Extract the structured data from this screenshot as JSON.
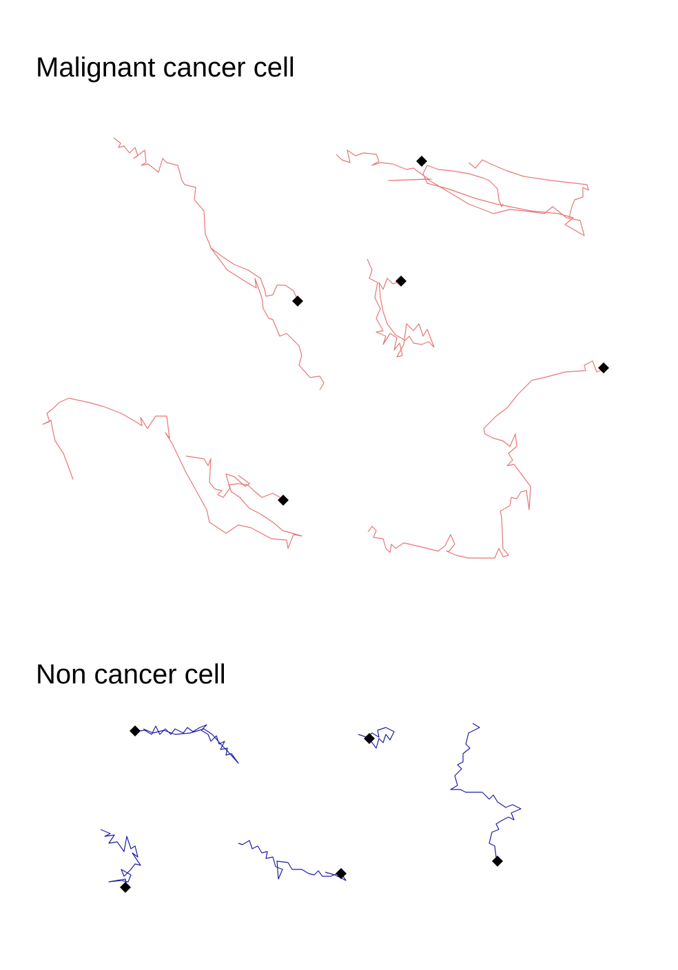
{
  "sections": [
    {
      "title": "Malignant cancer cell",
      "track_color": "#e87474"
    },
    {
      "title": "Non cancer cell",
      "track_color": "#1a1aa8"
    }
  ],
  "marker_color": "#000000"
}
